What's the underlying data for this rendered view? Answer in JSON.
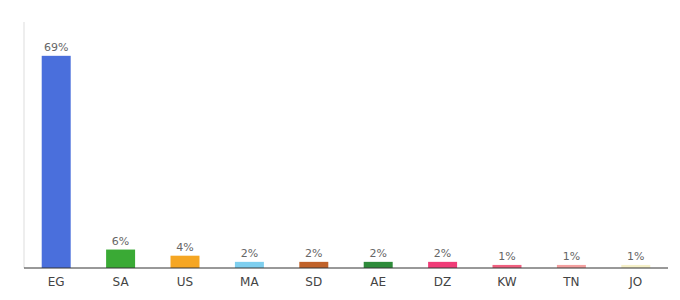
{
  "chart_data": {
    "type": "bar",
    "categories": [
      "EG",
      "SA",
      "US",
      "MA",
      "SD",
      "AE",
      "DZ",
      "KW",
      "TN",
      "JO"
    ],
    "values": [
      69,
      6,
      4,
      2,
      2,
      2,
      2,
      1,
      1,
      1
    ],
    "value_labels": [
      "69%",
      "6%",
      "4%",
      "2%",
      "2%",
      "2%",
      "2%",
      "1%",
      "1%",
      "1%"
    ],
    "colors": [
      "#4a6fdc",
      "#3aaa35",
      "#f5a623",
      "#7ecfef",
      "#c0622a",
      "#2e8b3a",
      "#f03c78",
      "#f06080",
      "#f4a0a0",
      "#f5f0c8"
    ],
    "ylim": [
      0,
      80
    ],
    "data_labels": true,
    "tick_labels": "x"
  }
}
